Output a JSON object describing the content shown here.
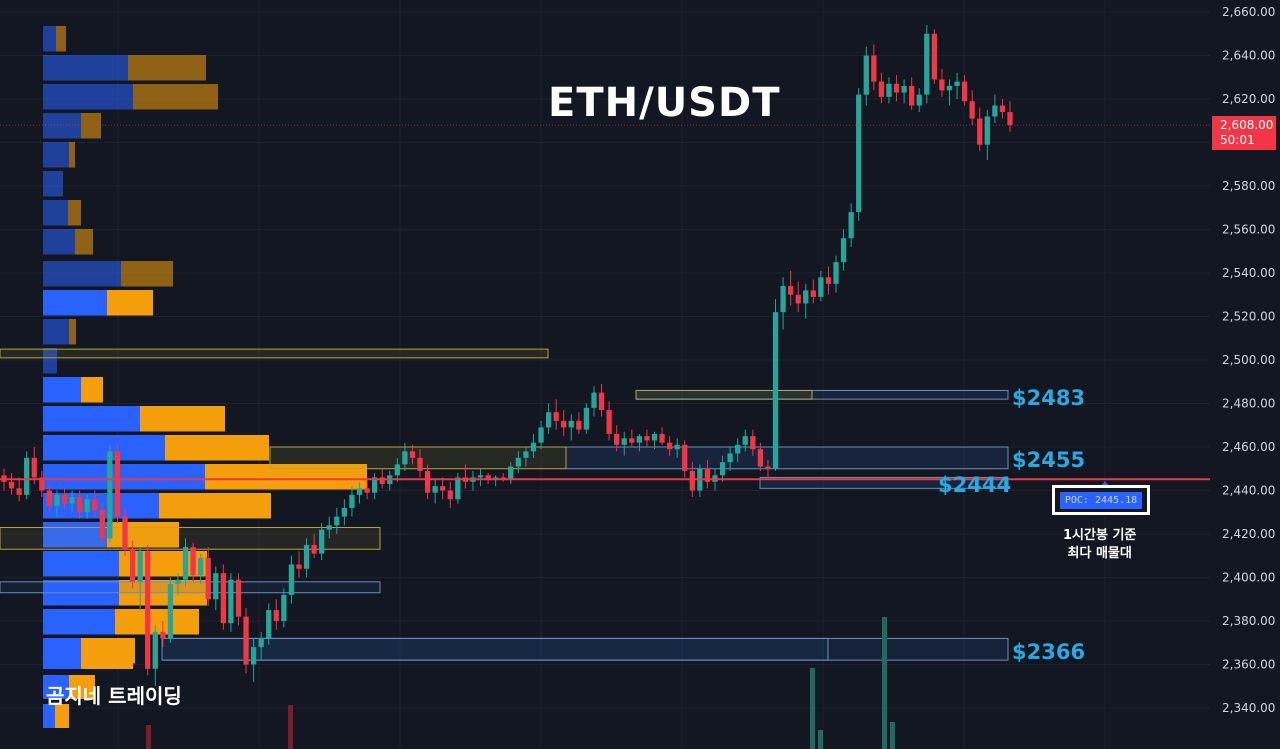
{
  "title": "ETH/USDT",
  "watermark": "곰지네 트레이딩",
  "last_price": {
    "price": "2,608.00",
    "countdown": "50:01",
    "color": "#f23645"
  },
  "poc": {
    "label": "POC: 2445.18",
    "note_line1": "1시간봉 기준",
    "note_line2": "최다 매물대"
  },
  "levels": [
    {
      "label": "$2483",
      "value": 2483
    },
    {
      "label": "$2455",
      "value": 2455
    },
    {
      "label": "$2444",
      "value": 2444
    },
    {
      "label": "$2366",
      "value": 2366
    }
  ],
  "colors": {
    "up": "#26a69a",
    "down": "#f23645",
    "poc_line": "#f23645",
    "vp_up": "#2962ff",
    "vp_down": "#f59e0b",
    "level_label": "#2aa9e0",
    "background": "#131722"
  },
  "chart_data": {
    "type": "candlestick",
    "title": "ETH/USDT",
    "ylim": [
      2330,
      2662
    ],
    "y_ticks": [
      "2,340.00",
      "2,360.00",
      "2,380.00",
      "2,400.00",
      "2,420.00",
      "2,440.00",
      "2,460.00",
      "2,480.00",
      "2,500.00",
      "2,520.00",
      "2,540.00",
      "2,560.00",
      "2,580.00",
      "2,600.00",
      "2,620.00",
      "2,640.00",
      "2,660.00"
    ],
    "y_tick_values": [
      2340,
      2360,
      2380,
      2400,
      2420,
      2440,
      2460,
      2480,
      2500,
      2520,
      2540,
      2560,
      2580,
      2600,
      2620,
      2640,
      2660
    ],
    "grid": true,
    "candles": [
      [
        2447,
        2450,
        2440,
        2444
      ],
      [
        2444,
        2448,
        2438,
        2441
      ],
      [
        2441,
        2446,
        2435,
        2438
      ],
      [
        2438,
        2458,
        2436,
        2455
      ],
      [
        2455,
        2460,
        2443,
        2446
      ],
      [
        2446,
        2449,
        2437,
        2440
      ],
      [
        2440,
        2442,
        2430,
        2433
      ],
      [
        2433,
        2440,
        2428,
        2438
      ],
      [
        2438,
        2441,
        2431,
        2434
      ],
      [
        2434,
        2440,
        2430,
        2437
      ],
      [
        2437,
        2440,
        2427,
        2430
      ],
      [
        2430,
        2438,
        2427,
        2436
      ],
      [
        2436,
        2440,
        2428,
        2431
      ],
      [
        2431,
        2434,
        2416,
        2418
      ],
      [
        2418,
        2461,
        2416,
        2458
      ],
      [
        2458,
        2461,
        2425,
        2428
      ],
      [
        2428,
        2432,
        2410,
        2413
      ],
      [
        2413,
        2417,
        2395,
        2398
      ],
      [
        2398,
        2414,
        2385,
        2412
      ],
      [
        2412,
        2415,
        2355,
        2358
      ],
      [
        2358,
        2378,
        2350,
        2375
      ],
      [
        2375,
        2380,
        2368,
        2372
      ],
      [
        2372,
        2400,
        2370,
        2397
      ],
      [
        2397,
        2402,
        2392,
        2399
      ],
      [
        2399,
        2418,
        2396,
        2414
      ],
      [
        2414,
        2416,
        2398,
        2401
      ],
      [
        2401,
        2411,
        2397,
        2409
      ],
      [
        2409,
        2414,
        2387,
        2390
      ],
      [
        2390,
        2405,
        2385,
        2402
      ],
      [
        2402,
        2406,
        2376,
        2379
      ],
      [
        2379,
        2402,
        2375,
        2399
      ],
      [
        2399,
        2402,
        2378,
        2382
      ],
      [
        2382,
        2386,
        2356,
        2360
      ],
      [
        2360,
        2372,
        2352,
        2368
      ],
      [
        2368,
        2375,
        2362,
        2372
      ],
      [
        2372,
        2388,
        2369,
        2385
      ],
      [
        2385,
        2390,
        2376,
        2380
      ],
      [
        2380,
        2395,
        2377,
        2392
      ],
      [
        2392,
        2410,
        2388,
        2406
      ],
      [
        2406,
        2412,
        2400,
        2404
      ],
      [
        2404,
        2418,
        2400,
        2415
      ],
      [
        2415,
        2420,
        2409,
        2411
      ],
      [
        2411,
        2425,
        2408,
        2422
      ],
      [
        2422,
        2428,
        2418,
        2424
      ],
      [
        2424,
        2432,
        2420,
        2428
      ],
      [
        2428,
        2436,
        2424,
        2432
      ],
      [
        2432,
        2442,
        2428,
        2438
      ],
      [
        2438,
        2444,
        2434,
        2441
      ],
      [
        2441,
        2446,
        2436,
        2439
      ],
      [
        2439,
        2448,
        2436,
        2446
      ],
      [
        2446,
        2450,
        2441,
        2443
      ],
      [
        2443,
        2449,
        2440,
        2447
      ],
      [
        2447,
        2455,
        2444,
        2452
      ],
      [
        2452,
        2462,
        2449,
        2458
      ],
      [
        2458,
        2461,
        2452,
        2455
      ],
      [
        2455,
        2459,
        2446,
        2449
      ],
      [
        2449,
        2452,
        2436,
        2439
      ],
      [
        2439,
        2445,
        2434,
        2442
      ],
      [
        2442,
        2446,
        2436,
        2440
      ],
      [
        2440,
        2444,
        2432,
        2436
      ],
      [
        2436,
        2448,
        2434,
        2446
      ],
      [
        2446,
        2452,
        2441,
        2444
      ],
      [
        2444,
        2449,
        2440,
        2446
      ],
      [
        2446,
        2450,
        2442,
        2447
      ],
      [
        2447,
        2448,
        2443,
        2445
      ],
      [
        2445,
        2447,
        2442,
        2446
      ],
      [
        2446,
        2448,
        2444,
        2445
      ],
      [
        2445,
        2453,
        2443,
        2451
      ],
      [
        2451,
        2458,
        2448,
        2455
      ],
      [
        2455,
        2460,
        2451,
        2458
      ],
      [
        2458,
        2466,
        2455,
        2462
      ],
      [
        2462,
        2472,
        2459,
        2469
      ],
      [
        2469,
        2480,
        2466,
        2476
      ],
      [
        2476,
        2482,
        2468,
        2472
      ],
      [
        2472,
        2477,
        2465,
        2469
      ],
      [
        2469,
        2475,
        2463,
        2472
      ],
      [
        2472,
        2476,
        2466,
        2468
      ],
      [
        2468,
        2480,
        2466,
        2478
      ],
      [
        2478,
        2488,
        2474,
        2485
      ],
      [
        2485,
        2489,
        2474,
        2477
      ],
      [
        2477,
        2481,
        2463,
        2466
      ],
      [
        2466,
        2470,
        2458,
        2461
      ],
      [
        2461,
        2467,
        2456,
        2464
      ],
      [
        2464,
        2468,
        2460,
        2462
      ],
      [
        2462,
        2466,
        2458,
        2465
      ],
      [
        2465,
        2468,
        2460,
        2463
      ],
      [
        2463,
        2467,
        2459,
        2466
      ],
      [
        2466,
        2469,
        2461,
        2462
      ],
      [
        2462,
        2465,
        2456,
        2459
      ],
      [
        2459,
        2464,
        2455,
        2461
      ],
      [
        2461,
        2463,
        2446,
        2449
      ],
      [
        2449,
        2453,
        2437,
        2440
      ],
      [
        2440,
        2452,
        2437,
        2450
      ],
      [
        2450,
        2454,
        2441,
        2444
      ],
      [
        2444,
        2450,
        2440,
        2447
      ],
      [
        2447,
        2456,
        2444,
        2453
      ],
      [
        2453,
        2460,
        2449,
        2457
      ],
      [
        2457,
        2464,
        2453,
        2461
      ],
      [
        2461,
        2468,
        2458,
        2465
      ],
      [
        2465,
        2468,
        2456,
        2459
      ],
      [
        2459,
        2462,
        2449,
        2451
      ],
      [
        2451,
        2454,
        2446,
        2450
      ],
      [
        2450,
        2528,
        2449,
        2522
      ],
      [
        2522,
        2538,
        2514,
        2534
      ],
      [
        2534,
        2541,
        2525,
        2530
      ],
      [
        2530,
        2536,
        2522,
        2526
      ],
      [
        2526,
        2535,
        2519,
        2532
      ],
      [
        2532,
        2537,
        2526,
        2529
      ],
      [
        2529,
        2541,
        2527,
        2538
      ],
      [
        2538,
        2543,
        2530,
        2535
      ],
      [
        2535,
        2548,
        2531,
        2545
      ],
      [
        2545,
        2560,
        2541,
        2556
      ],
      [
        2556,
        2572,
        2552,
        2568
      ],
      [
        2568,
        2625,
        2564,
        2622
      ],
      [
        2622,
        2644,
        2617,
        2640
      ],
      [
        2640,
        2645,
        2624,
        2628
      ],
      [
        2628,
        2632,
        2618,
        2621
      ],
      [
        2621,
        2630,
        2618,
        2627
      ],
      [
        2627,
        2631,
        2619,
        2623
      ],
      [
        2623,
        2629,
        2618,
        2626
      ],
      [
        2626,
        2630,
        2615,
        2617
      ],
      [
        2617,
        2625,
        2614,
        2622
      ],
      [
        2622,
        2654,
        2618,
        2650
      ],
      [
        2650,
        2652,
        2627,
        2629
      ],
      [
        2629,
        2634,
        2621,
        2624
      ],
      [
        2624,
        2629,
        2617,
        2626
      ],
      [
        2626,
        2632,
        2620,
        2628
      ],
      [
        2628,
        2631,
        2617,
        2619
      ],
      [
        2619,
        2624,
        2608,
        2611
      ],
      [
        2611,
        2616,
        2596,
        2599
      ],
      [
        2599,
        2615,
        2592,
        2612
      ],
      [
        2612,
        2622,
        2609,
        2617
      ],
      [
        2617,
        2620,
        2611,
        2614
      ],
      [
        2614,
        2619,
        2605,
        2608
      ]
    ],
    "volume_profile": {
      "price_step": 6.6,
      "rows": [
        [
          2658,
          4,
          4
        ],
        [
          2650,
          26,
          22
        ],
        [
          2642,
          30,
          26
        ],
        [
          2634,
          12,
          6
        ],
        [
          2626,
          8,
          2
        ],
        [
          2618,
          6,
          0
        ],
        [
          2610,
          8,
          4
        ],
        [
          2602,
          10,
          8
        ],
        [
          2594,
          26,
          16
        ],
        [
          2586,
          22,
          14
        ],
        [
          2578,
          8,
          2
        ],
        [
          2570,
          4,
          0
        ],
        [
          2562,
          12,
          6
        ],
        [
          2554,
          32,
          26
        ],
        [
          2546,
          40,
          28
        ],
        [
          2538,
          50,
          30
        ],
        [
          2530,
          20,
          44
        ],
        [
          2522,
          24,
          34
        ],
        [
          2514,
          20,
          28
        ],
        [
          2506,
          22,
          34
        ],
        [
          2498,
          26,
          34
        ],
        [
          2490,
          25,
          32
        ],
        [
          2482,
          28,
          30
        ],
        [
          2474,
          19,
          20
        ],
        [
          2466,
          38,
          26
        ],
        [
          2458,
          14,
          16
        ],
        [
          2450,
          10,
          10
        ],
        [
          2442,
          2,
          2
        ]
      ]
    },
    "volume_bars": [
      {
        "price_anchor": "bottom",
        "values": [
          0,
          0,
          0,
          0,
          0,
          0,
          0,
          0,
          0,
          0,
          0,
          0,
          0,
          0,
          0,
          0,
          0,
          0,
          0,
          0,
          0,
          0,
          0,
          0,
          0,
          0,
          0,
          0,
          0,
          0,
          0,
          0,
          0,
          0,
          0,
          0,
          0,
          0,
          0,
          0,
          0,
          0,
          0,
          0,
          0,
          0,
          0,
          0,
          0,
          0,
          0,
          0,
          0,
          0,
          0,
          0,
          0,
          0,
          0,
          0,
          0,
          0,
          0,
          0,
          0,
          0,
          0,
          0,
          0,
          0,
          0,
          0,
          0,
          0,
          0,
          0,
          0,
          0,
          0,
          0,
          0,
          0,
          0,
          0,
          0,
          0,
          0,
          0,
          0,
          0,
          0,
          0,
          0,
          0,
          0,
          0,
          0,
          0,
          0,
          0,
          0,
          0,
          0,
          0,
          0,
          0,
          0,
          0,
          0,
          0,
          0,
          0,
          0,
          0,
          0,
          0,
          0,
          0,
          0,
          0,
          0,
          0,
          0,
          0,
          0,
          0,
          0,
          0,
          0,
          0,
          0,
          0,
          0,
          0,
          0,
          0,
          0,
          0
        ]
      }
    ]
  }
}
